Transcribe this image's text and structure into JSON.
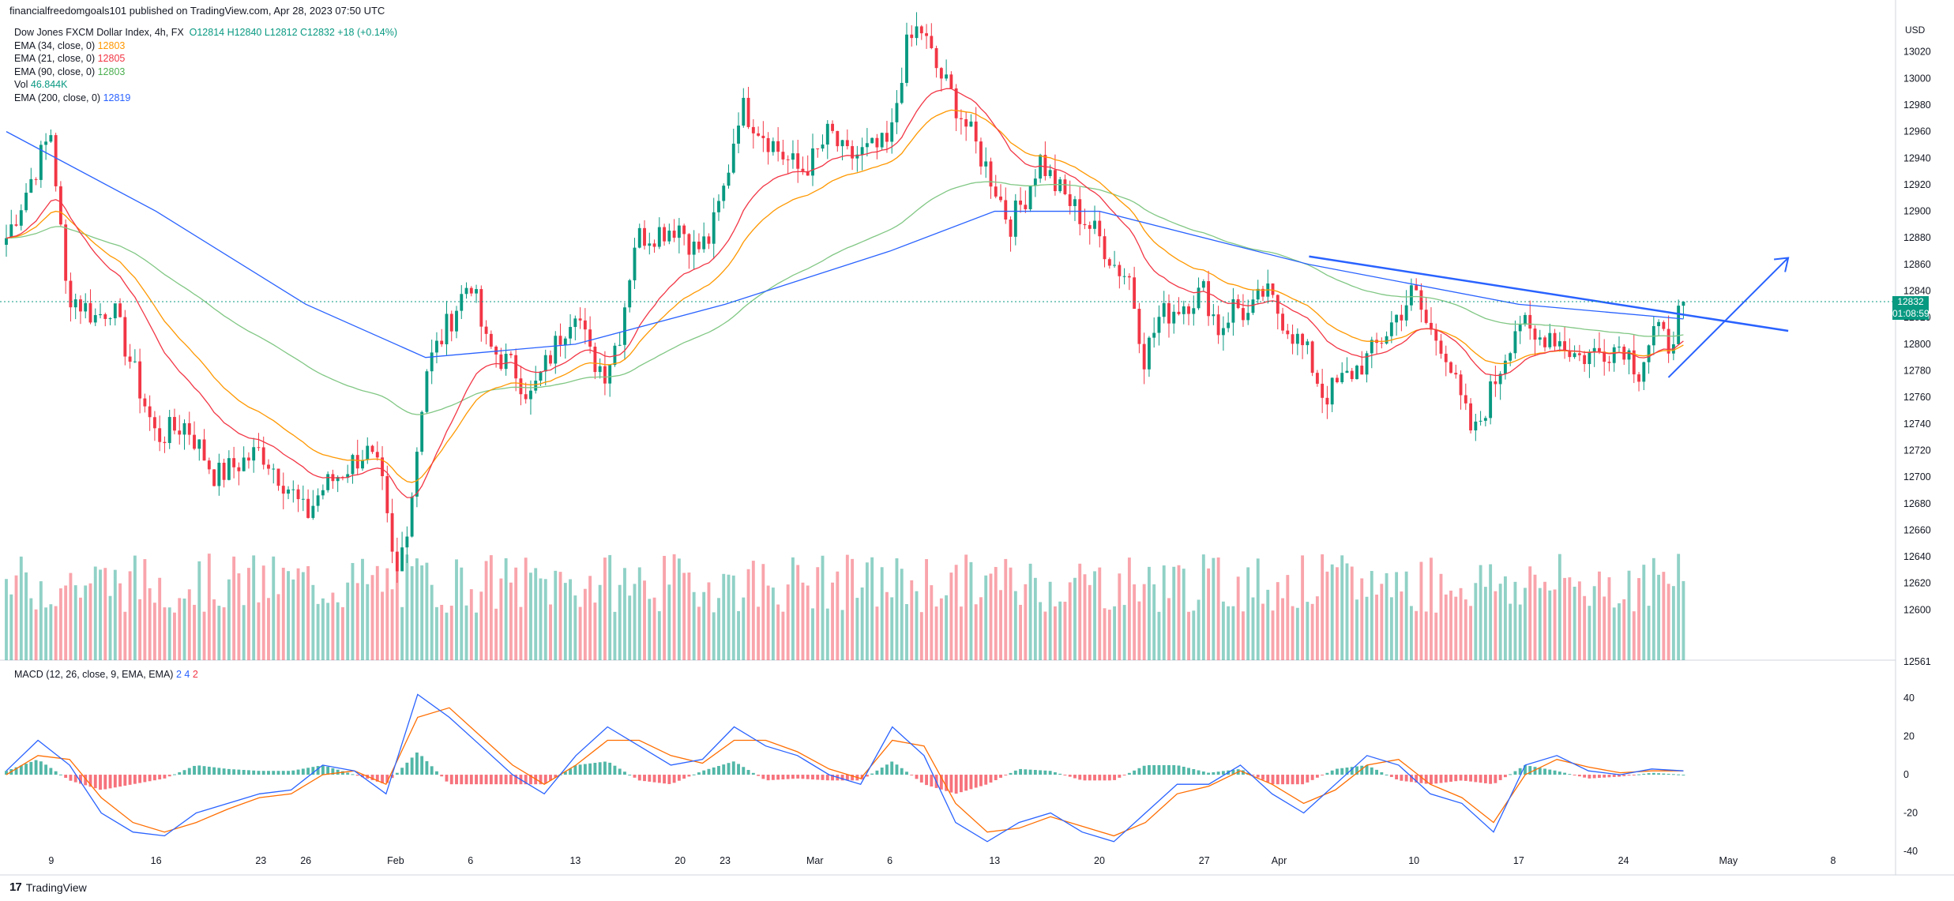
{
  "header": {
    "published": "financialfreedomgoals101 published on TradingView.com, Apr 28, 2023 07:50 UTC"
  },
  "legend": {
    "title": "Dow Jones FXCM Dollar Index, 4h, FX",
    "ohlc": "O12814  H12840  L12812  C12832  +18 (+0.14%)",
    "ema34_label": "EMA (34, close, 0)",
    "ema34_value": "12803",
    "ema21_label": "EMA (21, close, 0)",
    "ema21_value": "12805",
    "ema90_label": "EMA (90, close, 0)",
    "ema90_value": "12803",
    "vol_label": "Vol",
    "vol_value": "46.844K",
    "ema200_label": "EMA (200, close, 0)",
    "ema200_value": "12819"
  },
  "macd_legend": {
    "label": "MACD (12, 26, close, 9, EMA, EMA)",
    "v1": "2",
    "v2": "4",
    "v3": "2"
  },
  "price_axis": {
    "currency": "USD",
    "last_price": "12832",
    "countdown": "01:08:59"
  },
  "footer": {
    "brand": "TradingView"
  },
  "colors": {
    "up": "#089981",
    "down": "#f23645",
    "ema21": "#f23645",
    "ema34": "#ff9800",
    "ema90": "#81c784",
    "ema200": "#2962ff",
    "trendline": "#2962ff",
    "macd": "#2962ff",
    "signal": "#ff6d00"
  },
  "chart_data": [
    {
      "type": "candlestick",
      "title": "Dow Jones FXCM Dollar Index, 4h, FX",
      "ylim": [
        12561,
        13060
      ],
      "y_ticks": [
        12561,
        12600,
        12620,
        12640,
        12660,
        12680,
        12700,
        12720,
        12740,
        12760,
        12780,
        12800,
        12820,
        12840,
        12860,
        12880,
        12900,
        12920,
        12940,
        12960,
        12980,
        13000,
        13020
      ],
      "x_ticks": [
        "9",
        "16",
        "23",
        "26",
        "Feb",
        "6",
        "13",
        "20",
        "23",
        "Mar",
        "6",
        "13",
        "20",
        "27",
        "Apr",
        "10",
        "17",
        "24",
        "May",
        "8"
      ],
      "close_path": [
        [
          "Jan 6",
          12880
        ],
        [
          "Jan 9",
          12960
        ],
        [
          "Jan 10",
          12840
        ],
        [
          "Jan 12",
          12820
        ],
        [
          "Jan 13",
          12830
        ],
        [
          "Jan 16",
          12730
        ],
        [
          "Jan 18",
          12740
        ],
        [
          "Jan 20",
          12700
        ],
        [
          "Jan 23",
          12720
        ],
        [
          "Jan 25",
          12690
        ],
        [
          "Jan 26",
          12670
        ],
        [
          "Jan 27",
          12690
        ],
        [
          "Jan 30",
          12720
        ],
        [
          "Jan 31",
          12700
        ],
        [
          "Feb 1",
          12620
        ],
        [
          "Feb 2",
          12680
        ],
        [
          "Feb 3",
          12780
        ],
        [
          "Feb 6",
          12850
        ],
        [
          "Feb 7",
          12800
        ],
        [
          "Feb 9",
          12780
        ],
        [
          "Feb 10",
          12760
        ],
        [
          "Feb 13",
          12830
        ],
        [
          "Feb 14",
          12790
        ],
        [
          "Feb 15",
          12780
        ],
        [
          "Feb 16",
          12810
        ],
        [
          "Feb 17",
          12880
        ],
        [
          "Feb 20",
          12890
        ],
        [
          "Feb 21",
          12870
        ],
        [
          "Feb 22",
          12880
        ],
        [
          "Feb 23",
          12920
        ],
        [
          "Feb 24",
          12980
        ],
        [
          "Feb 27",
          12940
        ],
        [
          "Feb 28",
          12930
        ],
        [
          "Mar 1",
          12940
        ],
        [
          "Mar 2",
          12960
        ],
        [
          "Mar 3",
          12940
        ],
        [
          "Mar 6",
          12950
        ],
        [
          "Mar 7",
          13020
        ],
        [
          "Mar 8",
          13040
        ],
        [
          "Mar 9",
          13010
        ],
        [
          "Mar 10",
          12990
        ],
        [
          "Mar 13",
          12920
        ],
        [
          "Mar 14",
          12890
        ],
        [
          "Mar 15",
          12910
        ],
        [
          "Mar 16",
          12940
        ],
        [
          "Mar 17",
          12920
        ],
        [
          "Mar 20",
          12880
        ],
        [
          "Mar 21",
          12860
        ],
        [
          "Mar 22",
          12850
        ],
        [
          "Mar 23",
          12790
        ],
        [
          "Mar 24",
          12820
        ],
        [
          "Mar 27",
          12840
        ],
        [
          "Mar 28",
          12810
        ],
        [
          "Mar 29",
          12830
        ],
        [
          "Mar 30",
          12820
        ],
        [
          "Mar 31",
          12840
        ],
        [
          "Apr 3",
          12790
        ],
        [
          "Apr 4",
          12760
        ],
        [
          "Apr 5",
          12770
        ],
        [
          "Apr 6",
          12780
        ],
        [
          "Apr 7",
          12790
        ],
        [
          "Apr 10",
          12840
        ],
        [
          "Apr 11",
          12810
        ],
        [
          "Apr 12",
          12800
        ],
        [
          "Apr 13",
          12760
        ],
        [
          "Apr 14",
          12730
        ],
        [
          "Apr 17",
          12820
        ],
        [
          "Apr 18",
          12800
        ],
        [
          "Apr 19",
          12810
        ],
        [
          "Apr 20",
          12800
        ],
        [
          "Apr 21",
          12790
        ],
        [
          "Apr 24",
          12800
        ],
        [
          "Apr 25",
          12780
        ],
        [
          "Apr 26",
          12810
        ],
        [
          "Apr 27",
          12800
        ],
        [
          "Apr 28",
          12832
        ]
      ],
      "ema200": [
        [
          "Jan 6",
          12960
        ],
        [
          "Jan 16",
          12900
        ],
        [
          "Jan 26",
          12830
        ],
        [
          "Feb 3",
          12790
        ],
        [
          "Feb 13",
          12800
        ],
        [
          "Feb 23",
          12830
        ],
        [
          "Mar 6",
          12870
        ],
        [
          "Mar 13",
          12900
        ],
        [
          "Mar 20",
          12900
        ],
        [
          "Apr 3",
          12860
        ],
        [
          "Apr 17",
          12830
        ],
        [
          "Apr 28",
          12819
        ]
      ],
      "trendline": [
        [
          "Apr 3",
          12866
        ],
        [
          "May 5",
          12810
        ]
      ],
      "projection_arrow": [
        [
          "Apr 27",
          12775
        ],
        [
          "May 5",
          12865
        ]
      ],
      "volume_note": "Vol 46.844K"
    },
    {
      "type": "histogram+line",
      "title": "MACD (12, 26, close, 9, EMA, EMA)",
      "ylim": [
        -45,
        50
      ],
      "y_ticks": [
        40,
        20,
        0,
        -20,
        -40
      ],
      "series": [
        {
          "name": "MACD",
          "values": [
            2,
            18,
            5,
            -20,
            -30,
            -32,
            -20,
            -15,
            -10,
            -8,
            5,
            2,
            -10,
            42,
            30,
            15,
            0,
            -10,
            10,
            25,
            15,
            5,
            8,
            25,
            15,
            10,
            0,
            -5,
            25,
            10,
            -25,
            -35,
            -25,
            -20,
            -30,
            -35,
            -20,
            -5,
            -5,
            5,
            -10,
            -20,
            -5,
            10,
            5,
            -10,
            -15,
            -30,
            5,
            10,
            2,
            0,
            3,
            2
          ]
        },
        {
          "name": "Signal",
          "values": [
            0,
            10,
            8,
            -12,
            -25,
            -30,
            -25,
            -18,
            -12,
            -10,
            0,
            2,
            -5,
            30,
            35,
            20,
            5,
            -5,
            5,
            18,
            18,
            10,
            6,
            18,
            18,
            12,
            3,
            -2,
            18,
            15,
            -15,
            -30,
            -28,
            -22,
            -27,
            -32,
            -25,
            -10,
            -6,
            2,
            -5,
            -15,
            -8,
            5,
            8,
            -5,
            -12,
            -25,
            0,
            8,
            4,
            1,
            2,
            2
          ]
        }
      ]
    }
  ]
}
